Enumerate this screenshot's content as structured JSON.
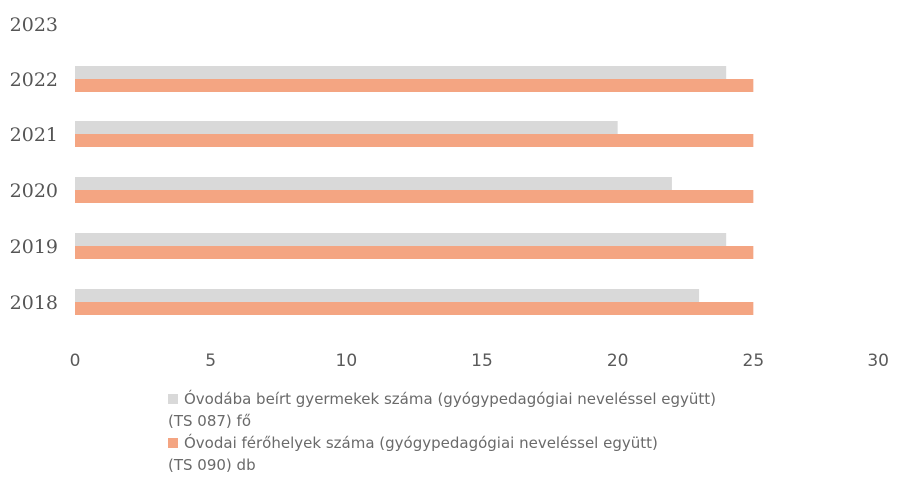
{
  "chart_data": {
    "type": "bar",
    "orientation": "horizontal",
    "categories": [
      "2018",
      "2019",
      "2020",
      "2021",
      "2022",
      "2023"
    ],
    "series": [
      {
        "name_line1": "Óvodába beírt gyermekek száma (gyógypedagógiai neveléssel együtt)",
        "name_line2": "(TS 087) fő",
        "color": "#d9d9d9",
        "values": [
          23,
          24,
          22,
          20,
          24,
          null
        ]
      },
      {
        "name_line1": "Óvodai férőhelyek száma (gyógypedagógiai neveléssel együtt)",
        "name_line2": "(TS 090) db",
        "color": "#f4a582",
        "values": [
          25,
          25,
          25,
          25,
          25,
          null
        ]
      }
    ],
    "xlim": [
      0,
      30
    ],
    "xticks": [
      "0",
      "5",
      "10",
      "15",
      "20",
      "25",
      "30"
    ],
    "grid": false,
    "legend_position": "bottom"
  }
}
